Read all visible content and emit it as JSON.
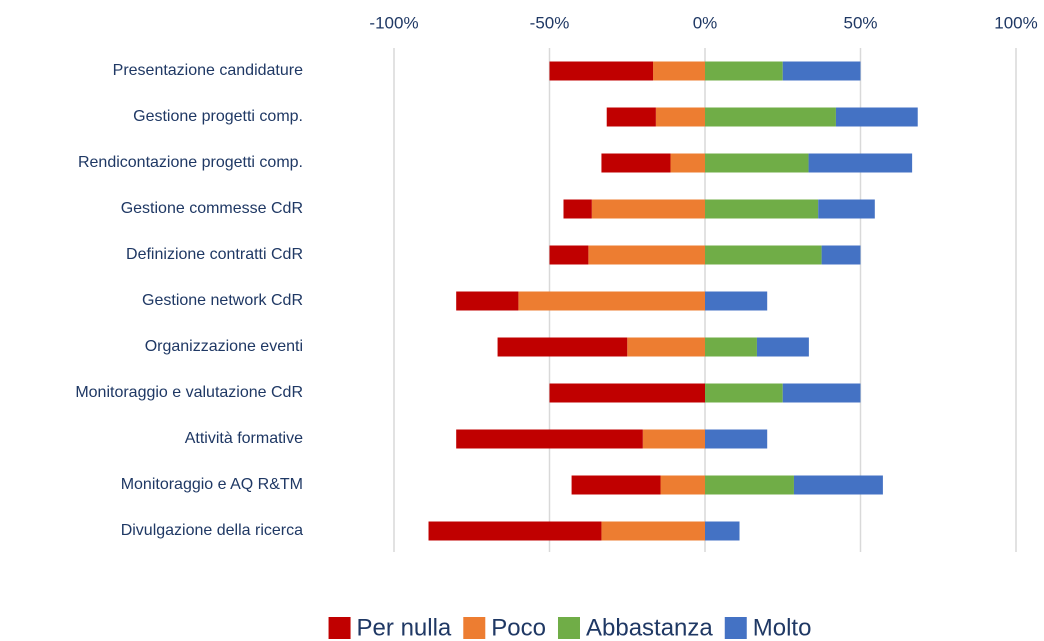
{
  "chart_data": {
    "type": "diverging-bar",
    "categories": [
      "Presentazione candidature",
      "Gestione progetti comp.",
      "Rendicontazione progetti comp.",
      "Gestione commesse CdR",
      "Definizione contratti CdR",
      "Gestione network CdR",
      "Organizzazione eventi",
      "Monitoraggio e valutazione CdR",
      "Attività formative",
      "Monitoraggio e AQ R&TM",
      "Divulgazione della ricerca"
    ],
    "series": [
      {
        "name": "Per nulla",
        "color": "#c00000",
        "values": [
          -33.3,
          -15.8,
          -22.2,
          -9.1,
          -12.5,
          -20,
          -41.7,
          -50,
          -60,
          -28.6,
          -55.6
        ]
      },
      {
        "name": "Poco",
        "color": "#ed7d31",
        "values": [
          -16.7,
          -15.8,
          -11.1,
          -36.4,
          -37.5,
          -60,
          -25,
          0,
          -20,
          -14.3,
          -33.3
        ]
      },
      {
        "name": "Abbastanza",
        "color": "#70ad47",
        "values": [
          25,
          42.1,
          33.3,
          36.4,
          37.5,
          0,
          16.7,
          25,
          0,
          28.6,
          0
        ]
      },
      {
        "name": "Molto",
        "color": "#4472c4",
        "values": [
          25,
          26.3,
          33.3,
          18.2,
          12.5,
          20,
          16.7,
          25,
          20,
          28.6,
          11.1
        ]
      }
    ],
    "xlim": [
      -100,
      100
    ],
    "xticks": [
      {
        "value": -100,
        "label": "-100%"
      },
      {
        "value": -50,
        "label": "-50%"
      },
      {
        "value": 0,
        "label": "0%"
      },
      {
        "value": 50,
        "label": "50%"
      },
      {
        "value": 100,
        "label": "100%"
      }
    ],
    "grid": true,
    "legend": "bottom"
  }
}
